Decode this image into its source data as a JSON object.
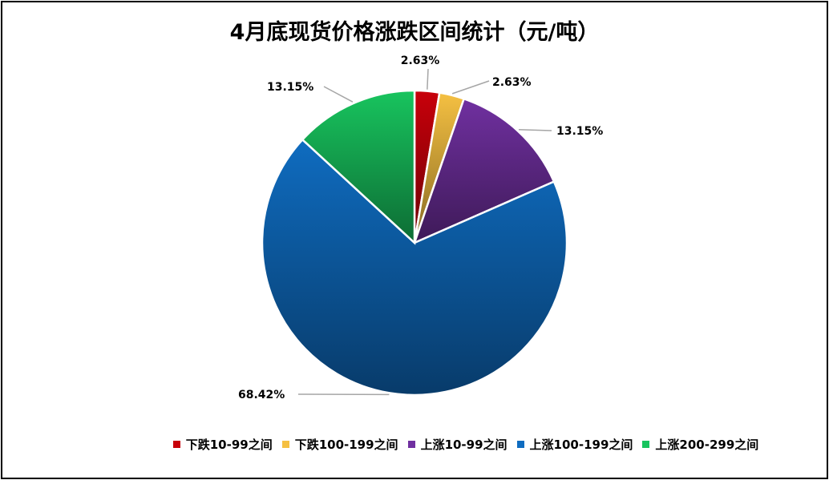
{
  "chart_data": {
    "type": "pie",
    "title": "4月底现货价格涨跌区间统计（元/吨）",
    "categories": [
      "下跌10-99之间",
      "下跌100-199之间",
      "上涨10-99之间",
      "上涨100-199之间",
      "上涨200-299之间"
    ],
    "values": [
      2.63,
      2.63,
      13.15,
      68.42,
      13.15
    ],
    "labels": [
      "2.63%",
      "2.63%",
      "13.15%",
      "68.42%",
      "13.15%"
    ],
    "colors": [
      "#c8000a",
      "#f5c042",
      "#7030a0",
      "#0f6cc0",
      "#18c45e"
    ],
    "legend_position": "bottom"
  }
}
